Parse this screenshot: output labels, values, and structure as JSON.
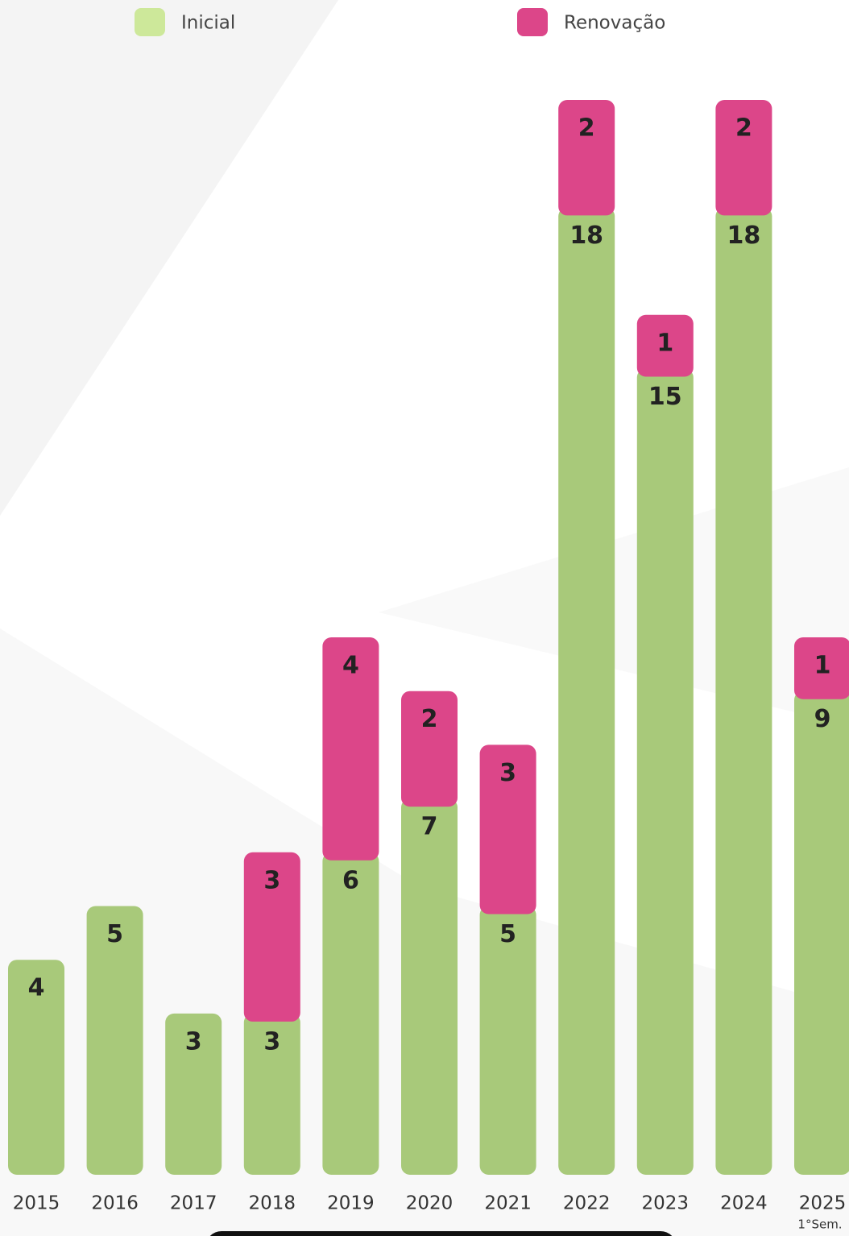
{
  "chart_data": {
    "type": "bar",
    "stacked": true,
    "categories": [
      "2015",
      "2016",
      "2017",
      "2018",
      "2019",
      "2020",
      "2021",
      "2022",
      "2023",
      "2024",
      "2025"
    ],
    "annotations": [
      "1°Sem."
    ],
    "series": [
      {
        "name": "Inicial",
        "color": "#a8c97a",
        "legend_color": "#cde89a",
        "values": [
          4,
          5,
          3,
          3,
          6,
          7,
          5,
          18,
          15,
          18,
          9
        ]
      },
      {
        "name": "Renovação",
        "color": "#dc4689",
        "legend_color": "#dc4689",
        "values": [
          null,
          null,
          null,
          3,
          4,
          2,
          3,
          2,
          1,
          2,
          1
        ]
      }
    ],
    "ylim": [
      0,
      20
    ]
  }
}
